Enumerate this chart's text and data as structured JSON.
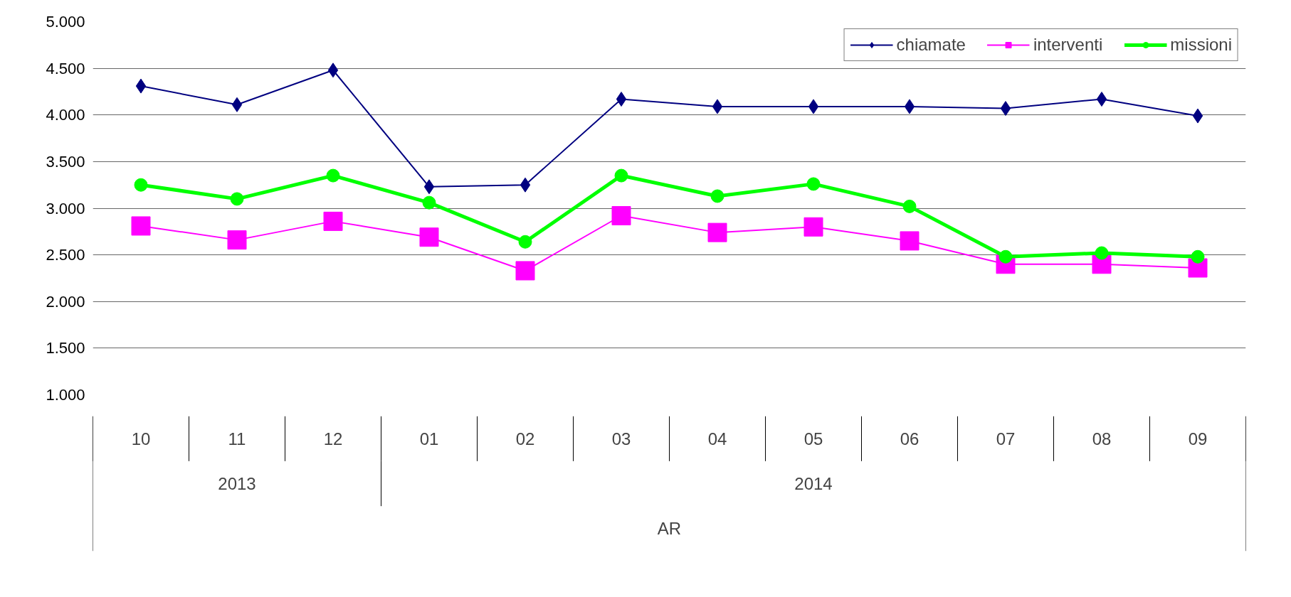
{
  "chart_data": {
    "type": "line",
    "categories": [
      "10",
      "11",
      "12",
      "01",
      "02",
      "03",
      "04",
      "05",
      "06",
      "07",
      "08",
      "09"
    ],
    "series": [
      {
        "name": "chiamate",
        "color": "#000080",
        "marker": "diamond",
        "values": [
          4310,
          4110,
          4480,
          3230,
          3250,
          4170,
          4090,
          4090,
          4090,
          4070,
          4170,
          3990
        ]
      },
      {
        "name": "interventi",
        "color": "#ff00ff",
        "marker": "square",
        "values": [
          2810,
          2660,
          2860,
          2690,
          2330,
          2920,
          2740,
          2800,
          2650,
          2400,
          2400,
          2360
        ]
      },
      {
        "name": "missioni",
        "color": "#00ff00",
        "marker": "circle",
        "values": [
          3250,
          3100,
          3350,
          3060,
          2640,
          3350,
          3130,
          3260,
          3020,
          2480,
          2520,
          2480
        ]
      }
    ],
    "ylim": [
      1000,
      5000
    ],
    "yticks": [
      {
        "value": 1000,
        "label": "1.000"
      },
      {
        "value": 1500,
        "label": "1.500"
      },
      {
        "value": 2000,
        "label": "2.000"
      },
      {
        "value": 2500,
        "label": "2.500"
      },
      {
        "value": 3000,
        "label": "3.000"
      },
      {
        "value": 3500,
        "label": "3.500"
      },
      {
        "value": 4000,
        "label": "4.000"
      },
      {
        "value": 4500,
        "label": "4.500"
      },
      {
        "value": 5000,
        "label": "5.000"
      }
    ],
    "grid": "y",
    "legend": "top right",
    "xlabel": "AR",
    "annotations": [
      "2013",
      "2014"
    ]
  }
}
